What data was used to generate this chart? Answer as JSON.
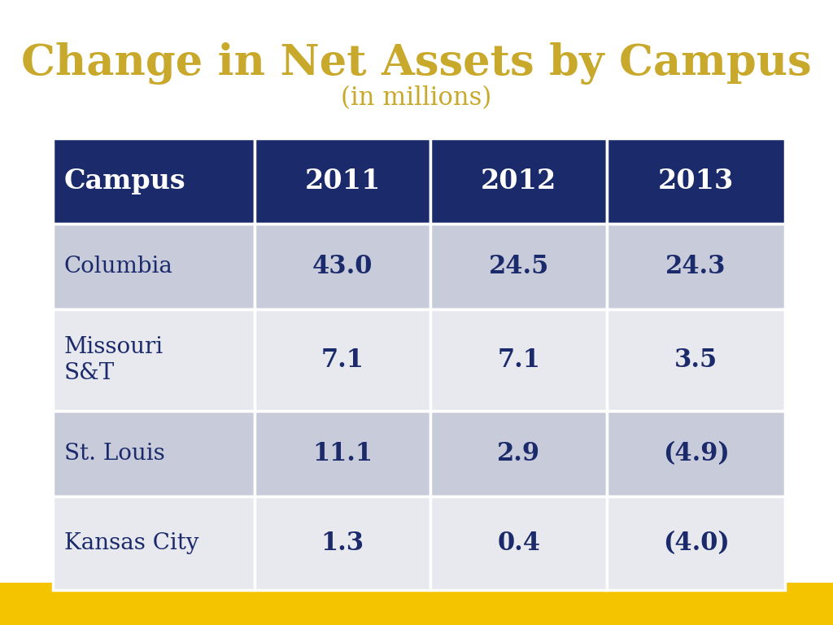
{
  "title": "Change in Net Assets by Campus",
  "subtitle": "(in millions)",
  "title_color": "#C9A92C",
  "subtitle_color": "#C9A92C",
  "header_bg_color": "#1B2A6B",
  "header_text_color": "#FFFFFF",
  "row_bg_even": "#C8CCDA",
  "row_bg_odd": "#E8E9EF",
  "cell_text_color": "#1B2A6B",
  "border_color": "#FFFFFF",
  "footer_color": "#F5C400",
  "background_color": "#FFFFFF",
  "columns": [
    "Campus",
    "2011",
    "2012",
    "2013"
  ],
  "rows": [
    [
      "Columbia",
      "43.0",
      "24.5",
      "24.3"
    ],
    [
      "Missouri\nS&T",
      "7.1",
      "7.1",
      "3.5"
    ],
    [
      "St. Louis",
      "11.1",
      "2.9",
      "(4.9)"
    ],
    [
      "Kansas City",
      "1.3",
      "0.4",
      "(4.0)"
    ]
  ],
  "title_fontsize": 38,
  "subtitle_fontsize": 22,
  "header_fontsize": 24,
  "data_fontsize": 22,
  "campus_fontsize": 20
}
